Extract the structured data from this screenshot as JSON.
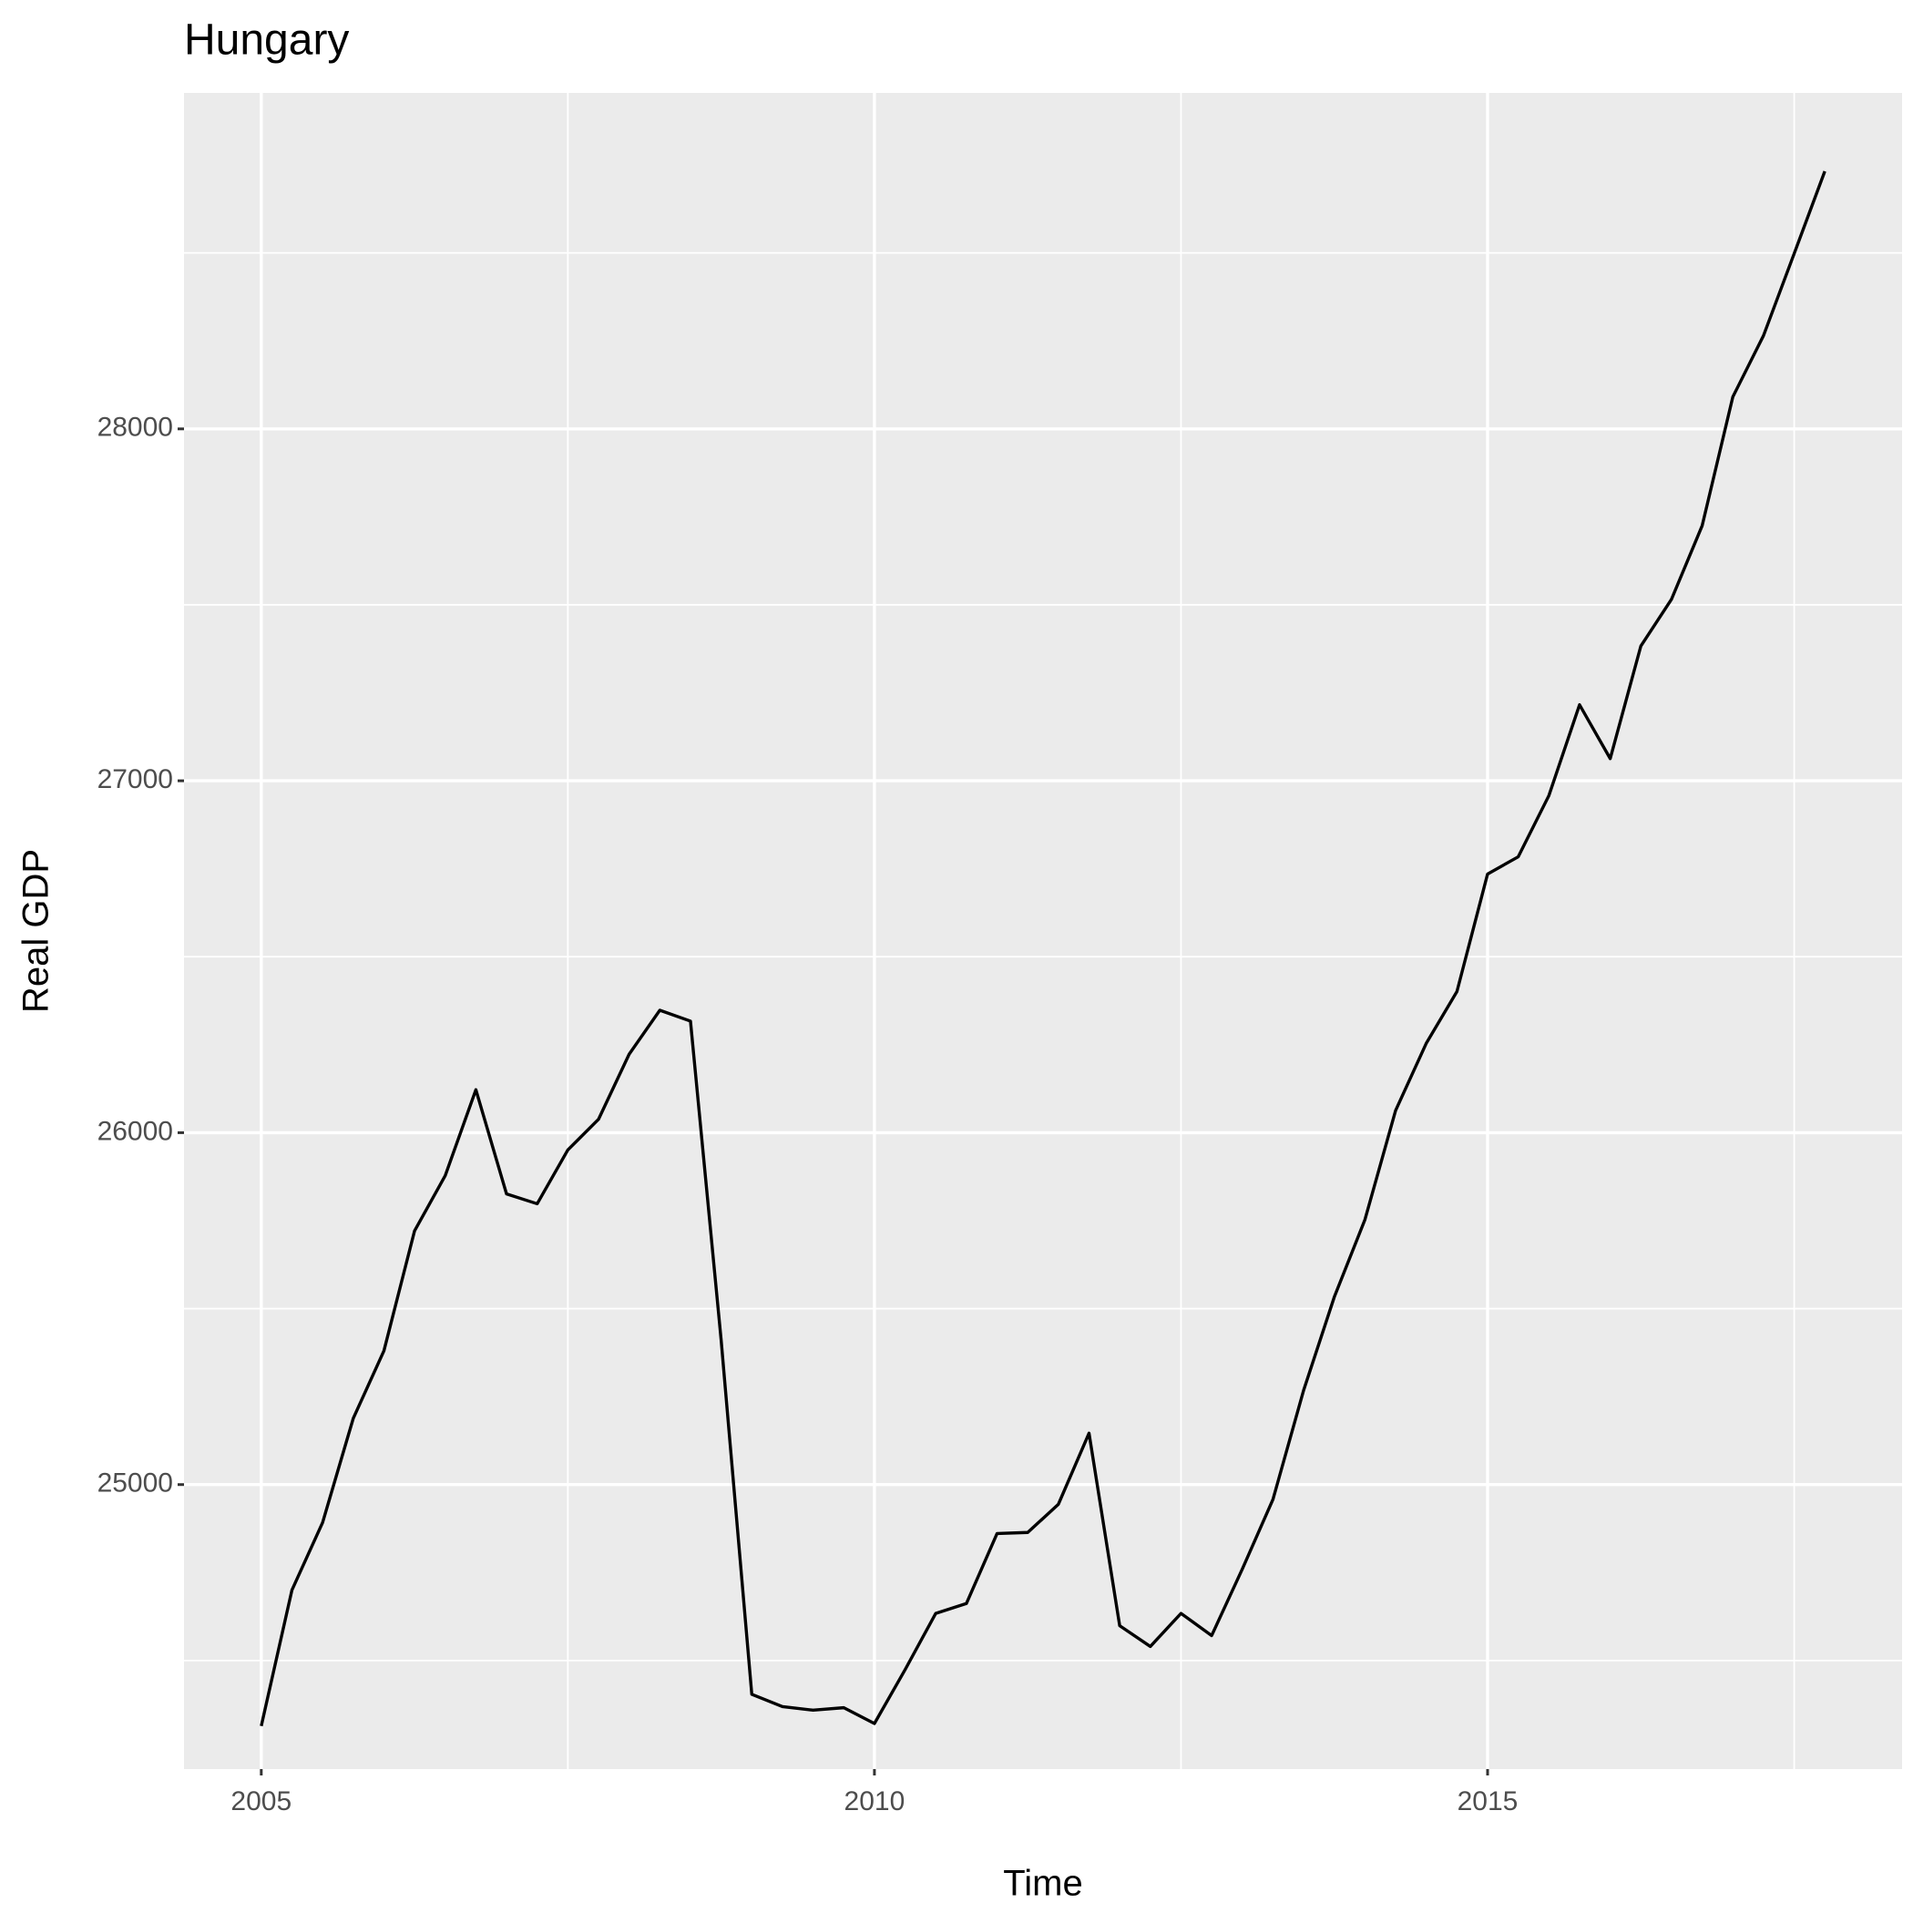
{
  "chart_data": {
    "type": "line",
    "title": "Hungary",
    "x_label": "Time",
    "y_label": "Real GDP",
    "x": [
      2005,
      2005.25,
      2005.5,
      2005.75,
      2006,
      2006.25,
      2006.5,
      2006.75,
      2007,
      2007.25,
      2007.5,
      2007.75,
      2008,
      2008.25,
      2008.5,
      2008.75,
      2009,
      2009.25,
      2009.5,
      2009.75,
      2010,
      2010.25,
      2010.5,
      2010.75,
      2011,
      2011.25,
      2011.5,
      2011.75,
      2012,
      2012.25,
      2012.5,
      2012.75,
      2013,
      2013.25,
      2013.5,
      2013.75,
      2014,
      2014.25,
      2014.5,
      2014.75,
      2015,
      2015.25,
      2015.5,
      2015.75,
      2016,
      2016.25,
      2016.5,
      2016.75,
      2017,
      2017.25,
      2017.5,
      2017.75
    ],
    "values": [
      24314,
      24700,
      24892,
      25188,
      25380,
      25721,
      25878,
      26122,
      25826,
      25798,
      25951,
      26038,
      26223,
      26348,
      26317,
      25411,
      24404,
      24369,
      24359,
      24366,
      24321,
      24474,
      24634,
      24662,
      24861,
      24864,
      24944,
      25146,
      24599,
      24540,
      24634,
      24571,
      24760,
      24958,
      25268,
      25533,
      25753,
      26063,
      26254,
      26401,
      26735,
      26784,
      26958,
      27216,
      27063,
      27383,
      27516,
      27725,
      28091,
      28265,
      28498,
      28732
    ],
    "color": "#000000",
    "xlim": [
      2004.37,
      2018.38
    ],
    "xticks": [
      2005,
      2010,
      2015
    ],
    "x_minor_grid": [
      2007.5,
      2012.5,
      2017.5
    ],
    "ylim": [
      24191.6,
      28954.7
    ],
    "yticks": [
      25000,
      26000,
      27000,
      28000
    ],
    "y_minor_grid": [
      24500,
      25500,
      26500,
      27500,
      28500
    ],
    "grid": true
  }
}
